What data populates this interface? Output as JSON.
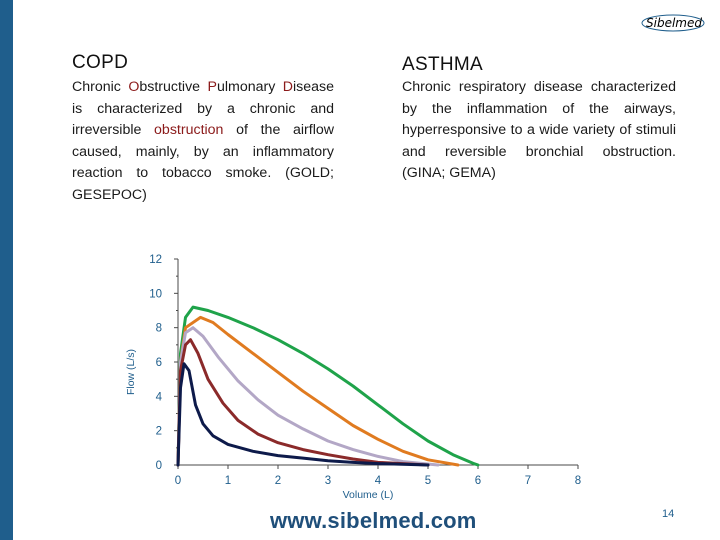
{
  "brand": {
    "logo_text": "Sibelmed",
    "url": "www.sibelmed.com"
  },
  "slide": {
    "page_number": "14"
  },
  "copd": {
    "heading": "COPD",
    "segments": [
      {
        "text": "Chronic ",
        "highlight": false
      },
      {
        "text": "O",
        "highlight": true
      },
      {
        "text": "bstructive ",
        "highlight": false
      },
      {
        "text": "P",
        "highlight": true
      },
      {
        "text": "ulmonary ",
        "highlight": false
      },
      {
        "text": "D",
        "highlight": true
      },
      {
        "text": "isease is characterized by a chronic and irreversible ",
        "highlight": false
      },
      {
        "text": "obstruction",
        "highlight": true
      },
      {
        "text": " of the airflow caused, mainly, by an inflammatory reaction to tobacco smoke. (GOLD; GESEPOC)",
        "highlight": false
      }
    ]
  },
  "asthma": {
    "heading": "ASTHMA",
    "text": "Chronic respiratory disease characterized by the inflammation of the airways, hyperresponsive to a wide variety of stimuli and reversible bronchial obstruction. (GINA; GEMA)"
  },
  "colors": {
    "accent": "#1f5e8c",
    "highlight": "#8b1a1a",
    "axis_text": "#1f5e8c"
  },
  "chart_data": {
    "type": "line",
    "title": "",
    "xlabel": "Volume (L)",
    "ylabel": "Flow (L/s)",
    "xlim": [
      0,
      8
    ],
    "ylim": [
      0,
      12
    ],
    "x_ticks": [
      0,
      1,
      2,
      3,
      4,
      5,
      6,
      7,
      8
    ],
    "y_ticks": [
      0,
      2,
      4,
      6,
      8,
      10,
      12
    ],
    "grid": false,
    "legend": "none",
    "series": [
      {
        "color": "#1fa34a",
        "points": [
          [
            0,
            0
          ],
          [
            0.05,
            6.5
          ],
          [
            0.15,
            8.6
          ],
          [
            0.3,
            9.2
          ],
          [
            0.6,
            9.0
          ],
          [
            1.0,
            8.6
          ],
          [
            1.5,
            8.0
          ],
          [
            2.0,
            7.3
          ],
          [
            2.5,
            6.5
          ],
          [
            3.0,
            5.6
          ],
          [
            3.5,
            4.6
          ],
          [
            4.0,
            3.5
          ],
          [
            4.5,
            2.4
          ],
          [
            5.0,
            1.4
          ],
          [
            5.5,
            0.6
          ],
          [
            5.9,
            0.1
          ],
          [
            6.0,
            0.0
          ]
        ]
      },
      {
        "color": "#e07b20",
        "points": [
          [
            0,
            0
          ],
          [
            0.05,
            6.0
          ],
          [
            0.15,
            8.0
          ],
          [
            0.45,
            8.6
          ],
          [
            0.7,
            8.3
          ],
          [
            1.0,
            7.6
          ],
          [
            1.5,
            6.5
          ],
          [
            2.0,
            5.4
          ],
          [
            2.5,
            4.3
          ],
          [
            3.0,
            3.3
          ],
          [
            3.5,
            2.3
          ],
          [
            4.0,
            1.5
          ],
          [
            4.5,
            0.8
          ],
          [
            5.0,
            0.3
          ],
          [
            5.6,
            0.0
          ]
        ]
      },
      {
        "color": "#b3a7c6",
        "points": [
          [
            0,
            0
          ],
          [
            0.05,
            6.0
          ],
          [
            0.15,
            7.7
          ],
          [
            0.3,
            8.0
          ],
          [
            0.5,
            7.5
          ],
          [
            0.8,
            6.3
          ],
          [
            1.2,
            4.9
          ],
          [
            1.6,
            3.8
          ],
          [
            2.0,
            2.9
          ],
          [
            2.5,
            2.1
          ],
          [
            3.0,
            1.4
          ],
          [
            3.5,
            0.9
          ],
          [
            4.0,
            0.5
          ],
          [
            4.5,
            0.2
          ],
          [
            5.2,
            0.0
          ]
        ]
      },
      {
        "color": "#8b2a2a",
        "points": [
          [
            0,
            0
          ],
          [
            0.05,
            5.5
          ],
          [
            0.15,
            7.0
          ],
          [
            0.25,
            7.3
          ],
          [
            0.4,
            6.5
          ],
          [
            0.6,
            5.0
          ],
          [
            0.9,
            3.6
          ],
          [
            1.2,
            2.6
          ],
          [
            1.6,
            1.8
          ],
          [
            2.0,
            1.3
          ],
          [
            2.5,
            0.9
          ],
          [
            3.0,
            0.6
          ],
          [
            3.5,
            0.35
          ],
          [
            4.0,
            0.15
          ],
          [
            5.0,
            0.0
          ]
        ]
      },
      {
        "color": "#0d1a4a",
        "points": [
          [
            0,
            0
          ],
          [
            0.05,
            4.5
          ],
          [
            0.12,
            5.9
          ],
          [
            0.22,
            5.5
          ],
          [
            0.35,
            3.5
          ],
          [
            0.5,
            2.4
          ],
          [
            0.7,
            1.7
          ],
          [
            1.0,
            1.2
          ],
          [
            1.5,
            0.8
          ],
          [
            2.0,
            0.55
          ],
          [
            2.5,
            0.4
          ],
          [
            3.0,
            0.25
          ],
          [
            3.5,
            0.15
          ],
          [
            4.0,
            0.08
          ],
          [
            5.0,
            0.0
          ]
        ]
      }
    ]
  }
}
